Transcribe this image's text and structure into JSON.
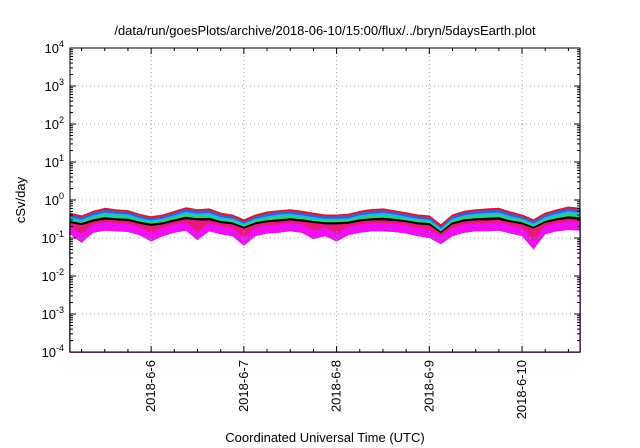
{
  "chart_data": {
    "type": "area",
    "title": "/data/run/goesPlots/archive/2018-06-10/15:00/flux/../bryn/5daysEarth.plot",
    "xlabel": "Coordinated Universal Time (UTC)",
    "ylabel": "cSv/day",
    "yscale": "log",
    "ylim": [
      0.0001,
      10000
    ],
    "xlim": [
      "2018-06-05 03:00",
      "2018-06-10 15:00"
    ],
    "yticks": [
      {
        "base": "10",
        "exp": "-4"
      },
      {
        "base": "10",
        "exp": "-3"
      },
      {
        "base": "10",
        "exp": "-2"
      },
      {
        "base": "10",
        "exp": "-1"
      },
      {
        "base": "10",
        "exp": "0"
      },
      {
        "base": "10",
        "exp": "1"
      },
      {
        "base": "10",
        "exp": "2"
      },
      {
        "base": "10",
        "exp": "3"
      },
      {
        "base": "10",
        "exp": "4"
      }
    ],
    "xticks": [
      "2018-6-6",
      "2018-6-7",
      "2018-6-8",
      "2018-6-9",
      "2018-6-10"
    ],
    "grid": true,
    "legend": "none",
    "x": [
      "2018-06-05 03:00",
      "2018-06-05 06:00",
      "2018-06-05 09:00",
      "2018-06-05 12:00",
      "2018-06-05 15:00",
      "2018-06-05 18:00",
      "2018-06-05 21:00",
      "2018-06-06 00:00",
      "2018-06-06 03:00",
      "2018-06-06 06:00",
      "2018-06-06 09:00",
      "2018-06-06 12:00",
      "2018-06-06 15:00",
      "2018-06-06 18:00",
      "2018-06-06 21:00",
      "2018-06-07 00:00",
      "2018-06-07 03:00",
      "2018-06-07 06:00",
      "2018-06-07 09:00",
      "2018-06-07 12:00",
      "2018-06-07 15:00",
      "2018-06-07 18:00",
      "2018-06-07 21:00",
      "2018-06-08 00:00",
      "2018-06-08 03:00",
      "2018-06-08 06:00",
      "2018-06-08 09:00",
      "2018-06-08 12:00",
      "2018-06-08 15:00",
      "2018-06-08 18:00",
      "2018-06-08 21:00",
      "2018-06-09 00:00",
      "2018-06-09 03:00",
      "2018-06-09 06:00",
      "2018-06-09 09:00",
      "2018-06-09 12:00",
      "2018-06-09 15:00",
      "2018-06-09 18:00",
      "2018-06-09 21:00",
      "2018-06-10 00:00",
      "2018-06-10 03:00",
      "2018-06-10 06:00",
      "2018-06-10 09:00",
      "2018-06-10 12:00",
      "2018-06-10 15:00"
    ],
    "series": [
      {
        "color": "#e0162b",
        "values": [
          0.45,
          0.38,
          0.5,
          0.6,
          0.55,
          0.52,
          0.42,
          0.36,
          0.4,
          0.5,
          0.62,
          0.55,
          0.58,
          0.45,
          0.4,
          0.3,
          0.4,
          0.48,
          0.52,
          0.55,
          0.5,
          0.45,
          0.4,
          0.4,
          0.42,
          0.5,
          0.56,
          0.58,
          0.52,
          0.46,
          0.4,
          0.38,
          0.22,
          0.4,
          0.5,
          0.55,
          0.58,
          0.6,
          0.48,
          0.4,
          0.3,
          0.45,
          0.55,
          0.65,
          0.6
        ]
      },
      {
        "color": "#3e5fc9",
        "values": [
          0.4,
          0.34,
          0.45,
          0.54,
          0.5,
          0.47,
          0.38,
          0.32,
          0.36,
          0.45,
          0.56,
          0.5,
          0.52,
          0.4,
          0.36,
          0.26,
          0.36,
          0.43,
          0.47,
          0.5,
          0.45,
          0.4,
          0.36,
          0.36,
          0.38,
          0.45,
          0.5,
          0.52,
          0.47,
          0.41,
          0.36,
          0.34,
          0.19,
          0.36,
          0.45,
          0.5,
          0.52,
          0.54,
          0.43,
          0.36,
          0.27,
          0.4,
          0.5,
          0.58,
          0.54
        ]
      },
      {
        "color": "#1fb8e6",
        "values": [
          0.34,
          0.29,
          0.38,
          0.45,
          0.42,
          0.4,
          0.32,
          0.28,
          0.31,
          0.38,
          0.47,
          0.42,
          0.44,
          0.34,
          0.31,
          0.23,
          0.31,
          0.36,
          0.4,
          0.42,
          0.38,
          0.34,
          0.31,
          0.31,
          0.32,
          0.38,
          0.42,
          0.44,
          0.4,
          0.35,
          0.31,
          0.29,
          0.17,
          0.31,
          0.38,
          0.42,
          0.44,
          0.45,
          0.36,
          0.31,
          0.23,
          0.34,
          0.42,
          0.49,
          0.45
        ]
      },
      {
        "color": "#2fd17a",
        "values": [
          0.3,
          0.26,
          0.34,
          0.4,
          0.37,
          0.35,
          0.29,
          0.25,
          0.28,
          0.34,
          0.41,
          0.37,
          0.39,
          0.3,
          0.28,
          0.21,
          0.28,
          0.32,
          0.35,
          0.37,
          0.34,
          0.3,
          0.28,
          0.28,
          0.29,
          0.34,
          0.37,
          0.39,
          0.35,
          0.31,
          0.28,
          0.26,
          0.15,
          0.28,
          0.34,
          0.37,
          0.39,
          0.4,
          0.32,
          0.28,
          0.21,
          0.3,
          0.37,
          0.43,
          0.4
        ]
      },
      {
        "color": "#000000",
        "values": [
          0.27,
          0.24,
          0.3,
          0.34,
          0.32,
          0.31,
          0.26,
          0.23,
          0.25,
          0.3,
          0.35,
          0.32,
          0.33,
          0.27,
          0.25,
          0.19,
          0.25,
          0.28,
          0.3,
          0.32,
          0.3,
          0.27,
          0.25,
          0.25,
          0.26,
          0.3,
          0.32,
          0.33,
          0.31,
          0.28,
          0.25,
          0.24,
          0.14,
          0.25,
          0.3,
          0.32,
          0.33,
          0.34,
          0.28,
          0.25,
          0.19,
          0.27,
          0.32,
          0.36,
          0.34
        ]
      },
      {
        "color": "#e6197a",
        "values": [
          0.24,
          0.21,
          0.26,
          0.29,
          0.28,
          0.27,
          0.23,
          0.2,
          0.22,
          0.26,
          0.3,
          0.28,
          0.28,
          0.24,
          0.22,
          0.17,
          0.22,
          0.25,
          0.26,
          0.28,
          0.26,
          0.24,
          0.22,
          0.22,
          0.23,
          0.26,
          0.28,
          0.28,
          0.27,
          0.25,
          0.22,
          0.21,
          0.13,
          0.22,
          0.26,
          0.28,
          0.28,
          0.29,
          0.25,
          0.22,
          0.17,
          0.24,
          0.28,
          0.31,
          0.29
        ]
      },
      {
        "color": "#ee10ee",
        "values": [
          0.2,
          0.12,
          0.22,
          0.25,
          0.24,
          0.23,
          0.19,
          0.13,
          0.18,
          0.22,
          0.25,
          0.14,
          0.24,
          0.2,
          0.18,
          0.1,
          0.18,
          0.21,
          0.22,
          0.24,
          0.22,
          0.15,
          0.18,
          0.13,
          0.19,
          0.22,
          0.24,
          0.24,
          0.23,
          0.21,
          0.18,
          0.16,
          0.11,
          0.18,
          0.22,
          0.24,
          0.24,
          0.25,
          0.21,
          0.18,
          0.08,
          0.2,
          0.24,
          0.26,
          0.25
        ]
      }
    ]
  }
}
